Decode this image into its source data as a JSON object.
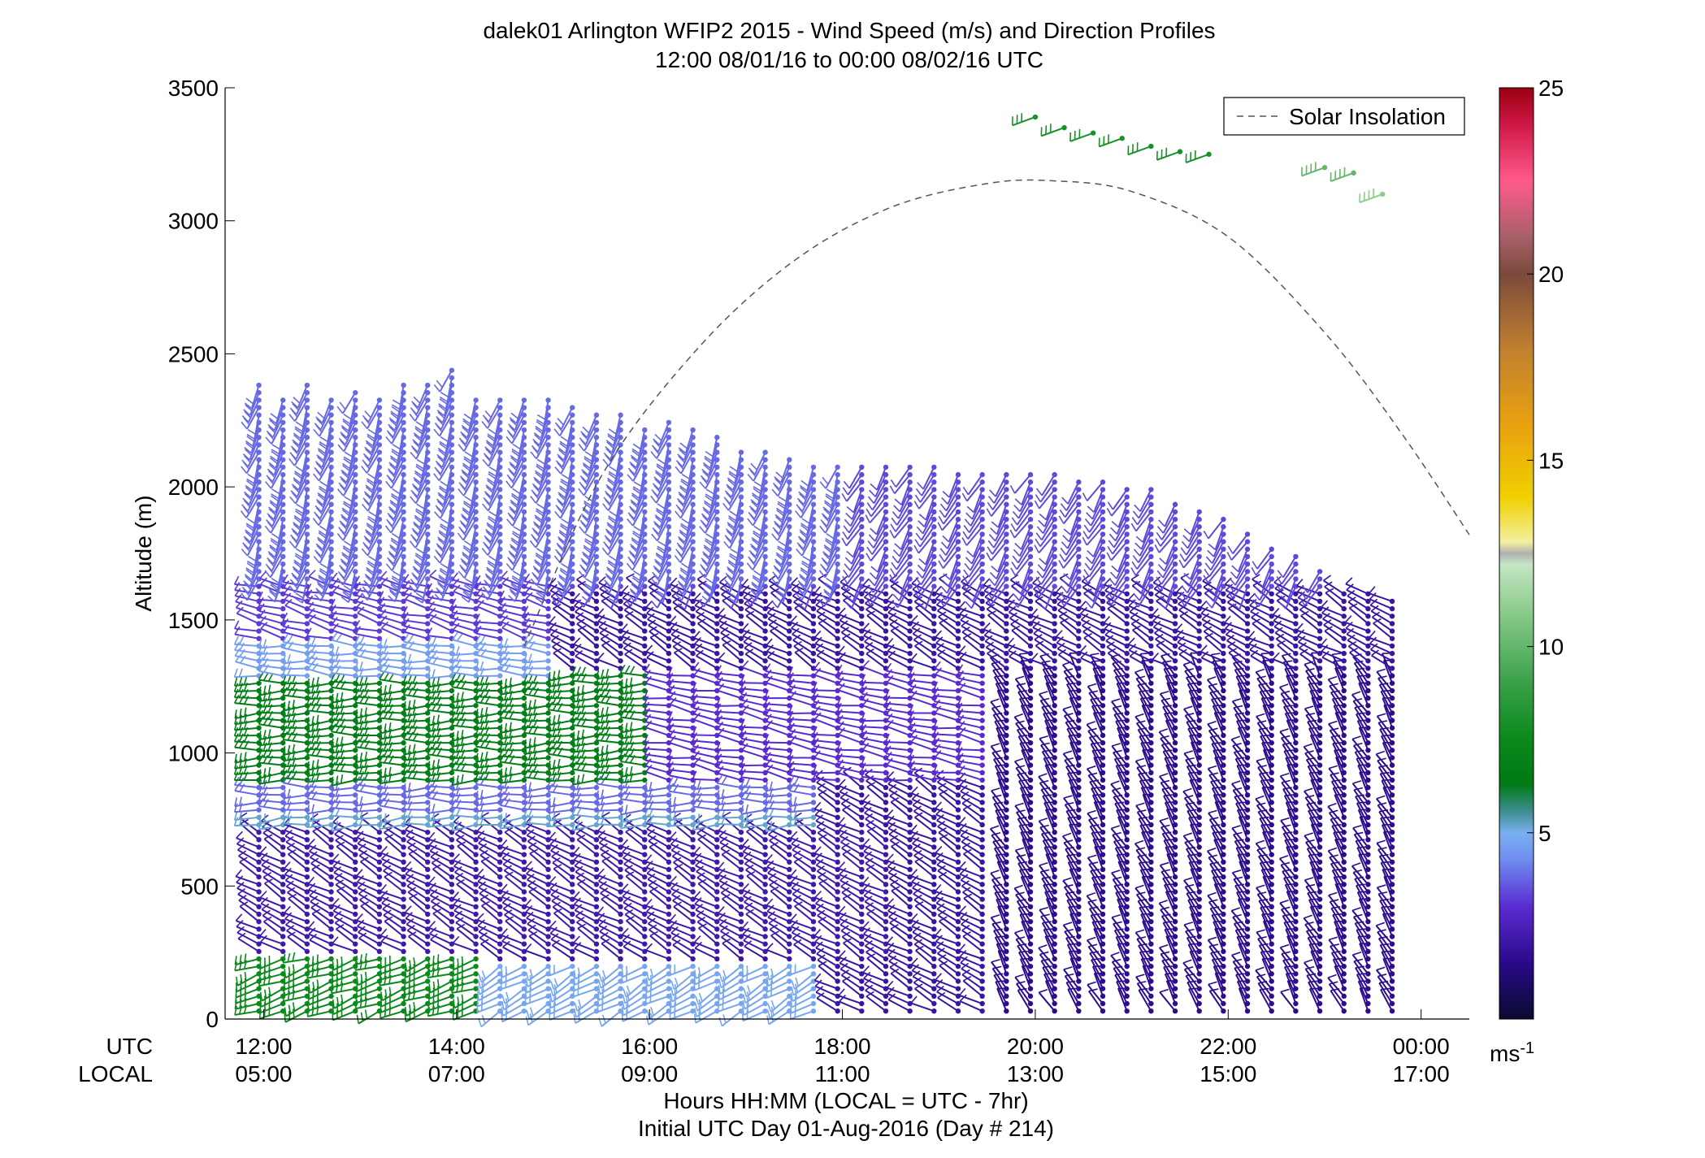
{
  "chart_data": {
    "type": "wind-barb-profile",
    "title": "dalek01 Arlington WFIP2 2015 - Wind Speed (m/s) and Direction Profiles",
    "subtitle": "12:00 08/01/16 to 00:00 08/02/16  UTC",
    "ylabel": "Altitude (m)",
    "xlabel": "Hours HH:MM  (LOCAL = UTC - 7hr)",
    "xlabel2": "Initial UTC Day 01-Aug-2016 (Day # 214)",
    "row_label_utc": "UTC",
    "row_label_local": "LOCAL",
    "x_range_hours": [
      11.6,
      24.5
    ],
    "y_range": [
      0,
      3500
    ],
    "y_ticks": [
      0,
      500,
      1000,
      1500,
      2000,
      2500,
      3000,
      3500
    ],
    "x_ticks": [
      {
        "hour": 12,
        "utc": "12:00",
        "local": "05:00"
      },
      {
        "hour": 14,
        "utc": "14:00",
        "local": "07:00"
      },
      {
        "hour": 16,
        "utc": "16:00",
        "local": "09:00"
      },
      {
        "hour": 18,
        "utc": "18:00",
        "local": "11:00"
      },
      {
        "hour": 20,
        "utc": "20:00",
        "local": "13:00"
      },
      {
        "hour": 22,
        "utc": "22:00",
        "local": "15:00"
      },
      {
        "hour": 24,
        "utc": "00:00",
        "local": "17:00"
      }
    ],
    "legend": {
      "label": "Solar Insolation",
      "position": "top-right",
      "style": "dashed"
    },
    "colorbar": {
      "range": [
        0,
        25
      ],
      "ticks": [
        5,
        10,
        15,
        20,
        25
      ],
      "unit": "ms",
      "unit_exponent": "-1",
      "stops": [
        {
          "v": 0,
          "c": "#0a0a30"
        },
        {
          "v": 1.5,
          "c": "#2a0a8a"
        },
        {
          "v": 3,
          "c": "#5a2ad0"
        },
        {
          "v": 4.3,
          "c": "#6f8ef0"
        },
        {
          "v": 5,
          "c": "#7ab0f0"
        },
        {
          "v": 5.6,
          "c": "#3c8c8c"
        },
        {
          "v": 6.3,
          "c": "#007a14"
        },
        {
          "v": 7.5,
          "c": "#0a8a1a"
        },
        {
          "v": 9,
          "c": "#38a048"
        },
        {
          "v": 11,
          "c": "#8ecc8e"
        },
        {
          "v": 12.2,
          "c": "#c4e6c4"
        },
        {
          "v": 12.5,
          "c": "#b0b0b0"
        },
        {
          "v": 12.8,
          "c": "#f2f0a0"
        },
        {
          "v": 14,
          "c": "#f0d000"
        },
        {
          "v": 16,
          "c": "#e8a010"
        },
        {
          "v": 18,
          "c": "#c08030"
        },
        {
          "v": 20,
          "c": "#7a4a3a"
        },
        {
          "v": 21,
          "c": "#a8606a"
        },
        {
          "v": 22.5,
          "c": "#ff5a8a"
        },
        {
          "v": 24,
          "c": "#d01848"
        },
        {
          "v": 25,
          "c": "#9a0010"
        }
      ]
    },
    "solar_insolation": {
      "x_hours": [
        14.7,
        15.5,
        16.5,
        17.5,
        18.5,
        19.5,
        20.2,
        21.0,
        22.0,
        23.0,
        23.8,
        24.5
      ],
      "y": [
        1400,
        2040,
        2520,
        2850,
        3050,
        3140,
        3150,
        3110,
        2940,
        2580,
        2200,
        1820
      ]
    },
    "profile_times_hours": {
      "start": 11.95,
      "end": 23.9,
      "step": 0.25,
      "max_heights": [
        2390,
        2350,
        2400,
        2350,
        2380,
        2350,
        2400,
        2400,
        2450,
        2330,
        2350,
        2330,
        2330,
        2300,
        2280,
        2270,
        2240,
        2260,
        2240,
        2200,
        2150,
        2130,
        2120,
        2090,
        2090,
        2090,
        2080,
        2080,
        2080,
        2060,
        2050,
        2050,
        2050,
        2050,
        2030,
        2020,
        2000,
        1990,
        1960,
        1920,
        1880,
        1840,
        1790,
        1740,
        1700,
        1620,
        1600,
        1590,
        1580
      ]
    },
    "wind_regimes": [
      {
        "t0": 11.9,
        "t1": 14.3,
        "z0": 0,
        "z1": 250,
        "speed": 7.5,
        "dir": 250
      },
      {
        "t0": 14.3,
        "t1": 17.8,
        "z0": 0,
        "z1": 220,
        "speed": 4.8,
        "dir": 240
      },
      {
        "t0": 11.9,
        "t1": 18.5,
        "z0": 250,
        "z1": 720,
        "speed": 2.2,
        "dir": 300
      },
      {
        "t0": 11.9,
        "t1": 17.8,
        "z0": 720,
        "z1": 780,
        "speed": 5.2,
        "dir": 265
      },
      {
        "t0": 11.9,
        "t1": 17.8,
        "z0": 780,
        "z1": 880,
        "speed": 3.8,
        "dir": 270
      },
      {
        "t0": 11.9,
        "t1": 16.0,
        "z0": 880,
        "z1": 1290,
        "speed": 6.6,
        "dir": 268
      },
      {
        "t0": 16.0,
        "t1": 19.5,
        "z0": 880,
        "z1": 1290,
        "speed": 3.0,
        "dir": 280
      },
      {
        "t0": 11.9,
        "t1": 15.0,
        "z0": 1290,
        "z1": 1420,
        "speed": 4.6,
        "dir": 275
      },
      {
        "t0": 11.9,
        "t1": 15.0,
        "z0": 1420,
        "z1": 1650,
        "speed": 3.2,
        "dir": 285
      },
      {
        "t0": 11.9,
        "t1": 18.0,
        "z0": 1650,
        "z1": 2450,
        "speed": 3.8,
        "dir": 200
      },
      {
        "t0": 19.5,
        "t1": 24.0,
        "z0": 0,
        "z1": 1300,
        "speed": 1.6,
        "dir": 330
      }
    ],
    "upper_barbs": [
      {
        "hour": 20.0,
        "z": 3390,
        "speed": 8,
        "dir": 250
      },
      {
        "hour": 20.3,
        "z": 3350,
        "speed": 8,
        "dir": 250
      },
      {
        "hour": 20.6,
        "z": 3330,
        "speed": 8,
        "dir": 250
      },
      {
        "hour": 20.9,
        "z": 3310,
        "speed": 8,
        "dir": 250
      },
      {
        "hour": 21.2,
        "z": 3280,
        "speed": 8,
        "dir": 250
      },
      {
        "hour": 21.5,
        "z": 3260,
        "speed": 8,
        "dir": 250
      },
      {
        "hour": 21.8,
        "z": 3250,
        "speed": 8,
        "dir": 250
      },
      {
        "hour": 23.0,
        "z": 3200,
        "speed": 10,
        "dir": 250
      },
      {
        "hour": 23.3,
        "z": 3180,
        "speed": 10,
        "dir": 250
      },
      {
        "hour": 23.6,
        "z": 3100,
        "speed": 11,
        "dir": 250
      }
    ]
  }
}
